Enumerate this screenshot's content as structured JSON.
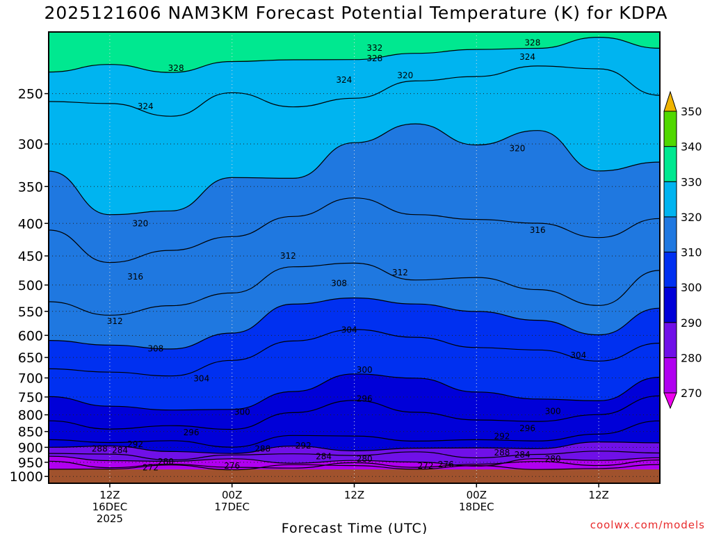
{
  "title": "2025121606 NAM3KM Forecast Potential Temperature (K) for KDPA",
  "credit": "coolwx.com/models",
  "chart_data": {
    "type": "heatmap",
    "title": "2025121606 NAM3KM Forecast Potential Temperature (K) for KDPA",
    "xlabel": "Forecast Time (UTC)",
    "ylabel": "",
    "y_scale": "log-pressure",
    "ylim": [
      1025,
      200
    ],
    "y_ticks": [
      250,
      300,
      350,
      400,
      450,
      500,
      550,
      600,
      650,
      700,
      750,
      800,
      850,
      900,
      950,
      1000
    ],
    "x_ticks": [
      {
        "hour": 6,
        "label": [
          "12Z",
          "16DEC",
          "2025"
        ]
      },
      {
        "hour": 18,
        "label": [
          "00Z",
          "17DEC"
        ]
      },
      {
        "hour": 30,
        "label": [
          "12Z"
        ]
      },
      {
        "hour": 42,
        "label": [
          "00Z",
          "18DEC"
        ]
      },
      {
        "hour": 54,
        "label": [
          "12Z"
        ]
      }
    ],
    "xlim": [
      0,
      60
    ],
    "grid": true,
    "colorbar": {
      "levels": [
        270,
        280,
        290,
        300,
        310,
        320,
        330,
        340,
        350
      ],
      "colors": [
        "#ee00ee",
        "#b000f0",
        "#7010e8",
        "#0000d8",
        "#0030f0",
        "#1f78e0",
        "#00b4f0",
        "#00e890",
        "#50d800",
        "#f0f000",
        "#f0b400"
      ]
    },
    "contour_interval_K": 2,
    "surface_color": "#a0522d",
    "series": [
      {
        "level": 328,
        "values": [
          [
            0,
            228
          ],
          [
            6,
            226
          ],
          [
            12,
            230
          ],
          [
            18,
            222
          ],
          [
            24,
            224
          ],
          [
            30,
            220
          ],
          [
            36,
            218
          ],
          [
            42,
            214
          ],
          [
            48,
            210
          ],
          [
            54,
            205
          ],
          [
            60,
            210
          ]
        ]
      },
      {
        "level": 324,
        "values": [
          [
            0,
            258
          ],
          [
            6,
            262
          ],
          [
            12,
            270
          ],
          [
            18,
            252
          ],
          [
            24,
            262
          ],
          [
            30,
            252
          ],
          [
            36,
            240
          ],
          [
            42,
            232
          ],
          [
            48,
            226
          ],
          [
            54,
            230
          ],
          [
            60,
            250
          ]
        ]
      },
      {
        "level": 320,
        "values": [
          [
            0,
            335
          ],
          [
            6,
            385
          ],
          [
            12,
            380
          ],
          [
            18,
            340
          ],
          [
            24,
            335
          ],
          [
            30,
            300
          ],
          [
            36,
            280
          ],
          [
            42,
            300
          ],
          [
            48,
            290
          ],
          [
            54,
            330
          ],
          [
            60,
            320
          ]
        ]
      },
      {
        "level": 316,
        "values": [
          [
            0,
            410
          ],
          [
            6,
            455
          ],
          [
            12,
            445
          ],
          [
            18,
            420
          ],
          [
            24,
            390
          ],
          [
            30,
            370
          ],
          [
            36,
            385
          ],
          [
            42,
            395
          ],
          [
            48,
            400
          ],
          [
            54,
            415
          ],
          [
            60,
            395
          ]
        ]
      },
      {
        "level": 312,
        "values": [
          [
            0,
            530
          ],
          [
            6,
            560
          ],
          [
            12,
            545
          ],
          [
            18,
            510
          ],
          [
            24,
            470
          ],
          [
            30,
            460
          ],
          [
            36,
            485
          ],
          [
            42,
            490
          ],
          [
            48,
            505
          ],
          [
            54,
            540
          ],
          [
            60,
            480
          ]
        ]
      },
      {
        "level": 308,
        "values": [
          [
            0,
            605
          ],
          [
            6,
            625
          ],
          [
            12,
            625
          ],
          [
            18,
            590
          ],
          [
            24,
            540
          ],
          [
            30,
            520
          ],
          [
            36,
            540
          ],
          [
            42,
            555
          ],
          [
            48,
            565
          ],
          [
            54,
            605
          ],
          [
            60,
            540
          ]
        ]
      },
      {
        "level": 304,
        "values": [
          [
            0,
            675
          ],
          [
            6,
            690
          ],
          [
            12,
            690
          ],
          [
            18,
            665
          ],
          [
            24,
            615
          ],
          [
            30,
            585
          ],
          [
            36,
            610
          ],
          [
            42,
            620
          ],
          [
            48,
            630
          ],
          [
            54,
            660
          ],
          [
            60,
            610
          ]
        ]
      },
      {
        "level": 300,
        "values": [
          [
            0,
            760
          ],
          [
            6,
            775
          ],
          [
            12,
            785
          ],
          [
            18,
            790
          ],
          [
            24,
            725
          ],
          [
            30,
            690
          ],
          [
            36,
            700
          ],
          [
            42,
            730
          ],
          [
            48,
            765
          ],
          [
            54,
            760
          ],
          [
            60,
            700
          ]
        ]
      },
      {
        "level": 296,
        "values": [
          [
            0,
            820
          ],
          [
            6,
            830
          ],
          [
            12,
            835
          ],
          [
            18,
            840
          ],
          [
            24,
            790
          ],
          [
            30,
            770
          ],
          [
            36,
            790
          ],
          [
            42,
            820
          ],
          [
            48,
            825
          ],
          [
            54,
            790
          ],
          [
            60,
            750
          ]
        ]
      },
      {
        "level": 292,
        "values": [
          [
            0,
            870
          ],
          [
            6,
            885
          ],
          [
            12,
            890
          ],
          [
            18,
            895
          ],
          [
            24,
            870
          ],
          [
            30,
            865
          ],
          [
            36,
            870
          ],
          [
            42,
            880
          ],
          [
            48,
            870
          ],
          [
            54,
            855
          ],
          [
            60,
            825
          ]
        ]
      },
      {
        "level": 288,
        "values": [
          [
            0,
            895
          ],
          [
            6,
            905
          ],
          [
            12,
            910
          ],
          [
            18,
            912
          ],
          [
            24,
            900
          ],
          [
            30,
            900
          ],
          [
            36,
            905
          ],
          [
            42,
            908
          ],
          [
            48,
            900
          ],
          [
            54,
            895
          ],
          [
            60,
            885
          ]
        ]
      },
      {
        "level": 284,
        "values": [
          [
            0,
            915
          ],
          [
            6,
            925
          ],
          [
            12,
            930
          ],
          [
            18,
            932
          ],
          [
            24,
            925
          ],
          [
            30,
            925
          ],
          [
            36,
            928
          ],
          [
            42,
            930
          ],
          [
            48,
            922
          ],
          [
            54,
            915
          ],
          [
            60,
            905
          ]
        ]
      },
      {
        "level": 280,
        "values": [
          [
            0,
            940
          ],
          [
            6,
            945
          ],
          [
            12,
            948
          ],
          [
            18,
            950
          ],
          [
            24,
            945
          ],
          [
            30,
            945
          ],
          [
            36,
            948
          ],
          [
            42,
            950
          ],
          [
            48,
            944
          ],
          [
            54,
            940
          ],
          [
            60,
            935
          ]
        ]
      },
      {
        "level": 276,
        "values": [
          [
            0,
            955
          ],
          [
            6,
            958
          ],
          [
            12,
            960
          ],
          [
            18,
            962
          ],
          [
            24,
            960
          ],
          [
            30,
            960
          ],
          [
            36,
            962
          ],
          [
            42,
            962
          ],
          [
            48,
            958
          ],
          [
            54,
            955
          ],
          [
            60,
            950
          ]
        ]
      },
      {
        "level": 272,
        "values": [
          [
            0,
            965
          ],
          [
            6,
            968
          ],
          [
            12,
            968
          ],
          [
            18,
            970
          ],
          [
            24,
            968
          ],
          [
            30,
            968
          ],
          [
            36,
            968
          ],
          [
            42,
            970
          ],
          [
            48,
            966
          ],
          [
            54,
            965
          ],
          [
            60,
            962
          ]
        ]
      }
    ],
    "contour_labels": [
      {
        "level": 332,
        "hour": 32.0,
        "p": 212
      },
      {
        "level": 328,
        "hour": 32.0,
        "p": 220
      },
      {
        "level": 328,
        "hour": 12.5,
        "p": 228
      },
      {
        "level": 328,
        "hour": 47.5,
        "p": 208
      },
      {
        "level": 324,
        "hour": 47.0,
        "p": 219
      },
      {
        "level": 324,
        "hour": 29.0,
        "p": 238
      },
      {
        "level": 324,
        "hour": 9.5,
        "p": 262
      },
      {
        "level": 320,
        "hour": 35.0,
        "p": 234
      },
      {
        "level": 320,
        "hour": 46.0,
        "p": 305
      },
      {
        "level": 320,
        "hour": 9.0,
        "p": 400
      },
      {
        "level": 316,
        "hour": 8.5,
        "p": 485
      },
      {
        "level": 316,
        "hour": 48.0,
        "p": 410
      },
      {
        "level": 312,
        "hour": 23.5,
        "p": 450
      },
      {
        "level": 312,
        "hour": 34.5,
        "p": 478
      },
      {
        "level": 312,
        "hour": 6.5,
        "p": 570
      },
      {
        "level": 308,
        "hour": 10.5,
        "p": 630
      },
      {
        "level": 308,
        "hour": 28.5,
        "p": 497
      },
      {
        "level": 304,
        "hour": 29.5,
        "p": 588
      },
      {
        "level": 304,
        "hour": 15.0,
        "p": 702
      },
      {
        "level": 304,
        "hour": 52.0,
        "p": 645
      },
      {
        "level": 300,
        "hour": 31.0,
        "p": 680
      },
      {
        "level": 300,
        "hour": 19.0,
        "p": 792
      },
      {
        "level": 300,
        "hour": 49.5,
        "p": 790
      },
      {
        "level": 296,
        "hour": 31.0,
        "p": 755
      },
      {
        "level": 296,
        "hour": 14.0,
        "p": 853
      },
      {
        "level": 296,
        "hour": 47.0,
        "p": 840
      },
      {
        "level": 292,
        "hour": 8.5,
        "p": 890
      },
      {
        "level": 292,
        "hour": 25.0,
        "p": 895
      },
      {
        "level": 292,
        "hour": 44.5,
        "p": 865
      },
      {
        "level": 288,
        "hour": 5.0,
        "p": 905
      },
      {
        "level": 288,
        "hour": 21.0,
        "p": 905
      },
      {
        "level": 288,
        "hour": 44.5,
        "p": 918
      },
      {
        "level": 284,
        "hour": 7.0,
        "p": 910
      },
      {
        "level": 284,
        "hour": 27.0,
        "p": 930
      },
      {
        "level": 284,
        "hour": 46.5,
        "p": 925
      },
      {
        "level": 280,
        "hour": 11.5,
        "p": 948
      },
      {
        "level": 280,
        "hour": 31.0,
        "p": 938
      },
      {
        "level": 280,
        "hour": 49.5,
        "p": 938
      },
      {
        "level": 276,
        "hour": 18.0,
        "p": 963
      },
      {
        "level": 276,
        "hour": 39.0,
        "p": 958
      },
      {
        "level": 272,
        "hour": 10.0,
        "p": 968
      },
      {
        "level": 272,
        "hour": 37.0,
        "p": 962
      }
    ]
  }
}
